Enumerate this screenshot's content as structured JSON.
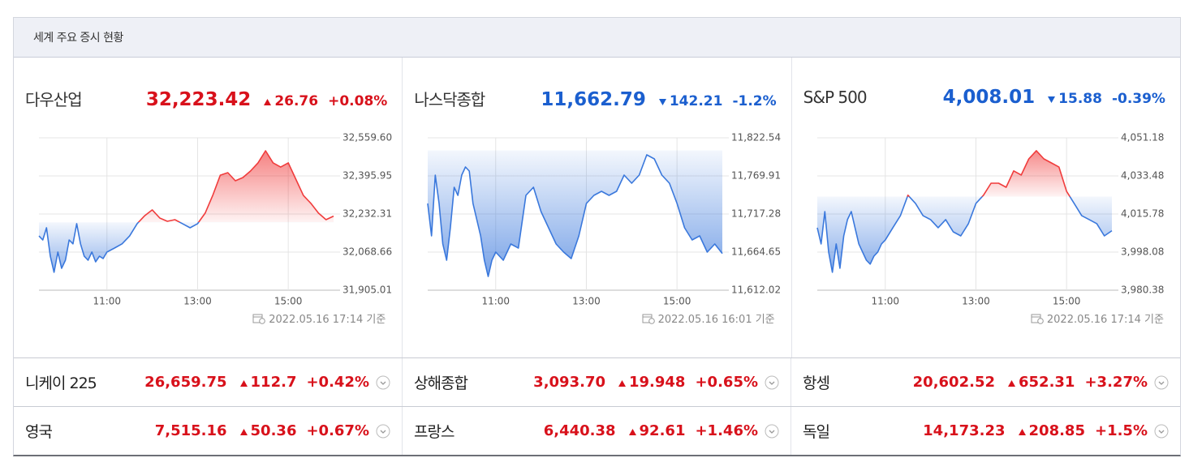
{
  "header": {
    "title": "세계 주요 증시 현황"
  },
  "colors": {
    "up": "#d8111b",
    "down": "#1b5fcf",
    "line_up": "#f03c3c",
    "line_down": "#3a78dc"
  },
  "panels": [
    {
      "name": "다우산업",
      "price": "32,223.42",
      "direction": "up",
      "change": "26.76",
      "change_rate": "+0.08%",
      "timestamp": "2022.05.16 17:14 기준",
      "chart": {
        "type": "line",
        "x": [
          "09:30",
          "09:35",
          "09:40",
          "09:45",
          "09:50",
          "09:55",
          "10:00",
          "10:05",
          "10:10",
          "10:15",
          "10:20",
          "10:25",
          "10:30",
          "10:35",
          "10:40",
          "10:45",
          "10:50",
          "10:55",
          "11:00",
          "11:10",
          "11:20",
          "11:30",
          "11:40",
          "11:50",
          "12:00",
          "12:10",
          "12:20",
          "12:30",
          "12:40",
          "12:50",
          "13:00",
          "13:10",
          "13:20",
          "13:30",
          "13:40",
          "13:50",
          "14:00",
          "14:10",
          "14:20",
          "14:30",
          "14:40",
          "14:50",
          "15:00",
          "15:10",
          "15:20",
          "15:30",
          "15:40",
          "15:50",
          "16:00"
        ],
        "values": [
          32138,
          32121,
          32173,
          32051,
          31982,
          32069,
          31999,
          32034,
          32121,
          32104,
          32191,
          32104,
          32051,
          32034,
          32069,
          32027,
          32051,
          32041,
          32069,
          32086,
          32104,
          32138,
          32191,
          32225,
          32250,
          32215,
          32201,
          32208,
          32191,
          32173,
          32191,
          32236,
          32312,
          32399,
          32410,
          32375,
          32389,
          32417,
          32452,
          32504,
          32452,
          32434,
          32452,
          32382,
          32312,
          32278,
          32236,
          32208,
          32223.42
        ],
        "baseline": 32196.66,
        "xlim": [
          "09:30",
          "16:00"
        ],
        "xticks": [
          "11:00",
          "13:00",
          "15:00"
        ],
        "ylim": [
          31905.01,
          32559.6
        ],
        "yticks": [
          {
            "value": 32559.6,
            "label": "32,559.60"
          },
          {
            "value": 32395.95,
            "label": "32,395.95"
          },
          {
            "value": 32232.31,
            "label": "32,232.31"
          },
          {
            "value": 32068.66,
            "label": "32,068.66"
          },
          {
            "value": 31905.01,
            "label": "31,905.01"
          }
        ],
        "grid": true
      }
    },
    {
      "name": "나스닥종합",
      "price": "11,662.79",
      "direction": "down",
      "change": "142.21",
      "change_rate": "-1.2%",
      "timestamp": "2022.05.16 16:01 기준",
      "chart": {
        "type": "line",
        "x": [
          "09:30",
          "09:35",
          "09:40",
          "09:45",
          "09:50",
          "09:55",
          "10:00",
          "10:05",
          "10:10",
          "10:15",
          "10:20",
          "10:25",
          "10:30",
          "10:35",
          "10:40",
          "10:45",
          "10:50",
          "10:55",
          "11:00",
          "11:10",
          "11:20",
          "11:30",
          "11:40",
          "11:50",
          "12:00",
          "12:10",
          "12:20",
          "12:30",
          "12:40",
          "12:50",
          "13:00",
          "13:10",
          "13:20",
          "13:30",
          "13:40",
          "13:50",
          "14:00",
          "14:10",
          "14:20",
          "14:30",
          "14:40",
          "14:50",
          "15:00",
          "15:10",
          "15:20",
          "15:30",
          "15:40",
          "15:50",
          "16:00"
        ],
        "values": [
          11731.8,
          11687.0,
          11771.0,
          11731.8,
          11675.8,
          11653.4,
          11698.2,
          11754.2,
          11743.0,
          11771.0,
          11782.2,
          11776.6,
          11731.8,
          11709.4,
          11687.0,
          11653.4,
          11631.0,
          11653.4,
          11664.6,
          11653.4,
          11675.8,
          11670.2,
          11743.0,
          11754.2,
          11720.6,
          11698.2,
          11675.8,
          11664.6,
          11655.7,
          11687.0,
          11731.8,
          11743.0,
          11748.6,
          11743.0,
          11748.6,
          11771.0,
          11759.8,
          11771.0,
          11799.0,
          11793.4,
          11771.0,
          11759.8,
          11731.8,
          11698.2,
          11681.4,
          11687.0,
          11664.6,
          11675.8,
          11662.79
        ],
        "baseline": 11805.0,
        "xlim": [
          "09:30",
          "16:00"
        ],
        "xticks": [
          "11:00",
          "13:00",
          "15:00"
        ],
        "ylim": [
          11612.02,
          11822.54
        ],
        "yticks": [
          {
            "value": 11822.54,
            "label": "11,822.54"
          },
          {
            "value": 11769.91,
            "label": "11,769.91"
          },
          {
            "value": 11717.28,
            "label": "11,717.28"
          },
          {
            "value": 11664.65,
            "label": "11,664.65"
          },
          {
            "value": 11612.02,
            "label": "11,612.02"
          }
        ],
        "grid": true
      }
    },
    {
      "name": "S&P 500",
      "price": "4,008.01",
      "direction": "down",
      "change": "15.88",
      "change_rate": "-0.39%",
      "timestamp": "2022.05.16 17:14 기준",
      "chart": {
        "type": "line",
        "x": [
          "09:30",
          "09:35",
          "09:40",
          "09:45",
          "09:50",
          "09:55",
          "10:00",
          "10:05",
          "10:10",
          "10:15",
          "10:20",
          "10:25",
          "10:30",
          "10:35",
          "10:40",
          "10:45",
          "10:50",
          "10:55",
          "11:00",
          "11:10",
          "11:20",
          "11:30",
          "11:40",
          "11:50",
          "12:00",
          "12:10",
          "12:20",
          "12:30",
          "12:40",
          "12:50",
          "13:00",
          "13:10",
          "13:20",
          "13:30",
          "13:40",
          "13:50",
          "14:00",
          "14:10",
          "14:20",
          "14:30",
          "14:40",
          "14:50",
          "15:00",
          "15:10",
          "15:20",
          "15:30",
          "15:40",
          "15:50",
          "16:00"
        ],
        "values": [
          4009.4,
          4001.9,
          4016.9,
          3998.1,
          3988.7,
          4001.9,
          3990.6,
          4005.6,
          4013.2,
          4016.9,
          4009.4,
          4001.9,
          3998.1,
          3994.3,
          3992.5,
          3996.2,
          3998.1,
          4001.9,
          4003.7,
          4009.4,
          4015.0,
          4024.5,
          4020.7,
          4015.0,
          4013.2,
          4009.4,
          4013.2,
          4007.5,
          4005.6,
          4011.3,
          4020.7,
          4024.5,
          4030.1,
          4030.1,
          4028.2,
          4035.8,
          4033.9,
          4041.4,
          4045.2,
          4041.4,
          4039.5,
          4037.6,
          4026.3,
          4020.7,
          4015.0,
          4013.2,
          4011.3,
          4005.6,
          4008.01
        ],
        "baseline": 4023.89,
        "xlim": [
          "09:30",
          "16:00"
        ],
        "xticks": [
          "11:00",
          "13:00",
          "15:00"
        ],
        "ylim": [
          3980.38,
          4051.18
        ],
        "yticks": [
          {
            "value": 4051.18,
            "label": "4,051.18"
          },
          {
            "value": 4033.48,
            "label": "4,033.48"
          },
          {
            "value": 4015.78,
            "label": "4,015.78"
          },
          {
            "value": 3998.08,
            "label": "3,998.08"
          },
          {
            "value": 3980.38,
            "label": "3,980.38"
          }
        ],
        "grid": true
      }
    }
  ],
  "rows": [
    [
      {
        "name": "니케이 225",
        "price": "26,659.75",
        "direction": "up",
        "change": "112.7",
        "change_rate": "+0.42%"
      },
      {
        "name": "상해종합",
        "price": "3,093.70",
        "direction": "up",
        "change": "19.948",
        "change_rate": "+0.65%"
      },
      {
        "name": "항셍",
        "price": "20,602.52",
        "direction": "up",
        "change": "652.31",
        "change_rate": "+3.27%"
      }
    ],
    [
      {
        "name": "영국",
        "price": "7,515.16",
        "direction": "up",
        "change": "50.36",
        "change_rate": "+0.67%"
      },
      {
        "name": "프랑스",
        "price": "6,440.38",
        "direction": "up",
        "change": "92.61",
        "change_rate": "+1.46%"
      },
      {
        "name": "독일",
        "price": "14,173.23",
        "direction": "up",
        "change": "208.85",
        "change_rate": "+1.5%"
      }
    ]
  ]
}
